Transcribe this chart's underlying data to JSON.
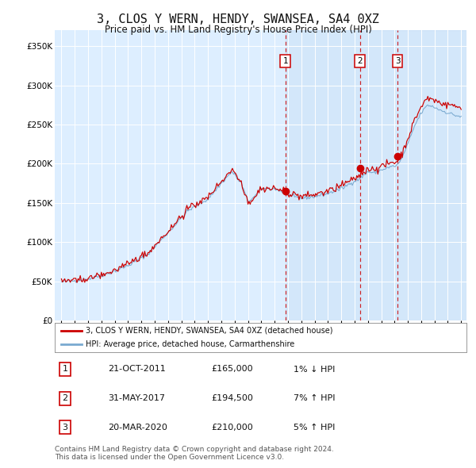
{
  "title": "3, CLOS Y WERN, HENDY, SWANSEA, SA4 0XZ",
  "subtitle": "Price paid vs. HM Land Registry's House Price Index (HPI)",
  "title_fontsize": 11,
  "subtitle_fontsize": 8.5,
  "ylim": [
    0,
    370000
  ],
  "yticks": [
    0,
    50000,
    100000,
    150000,
    200000,
    250000,
    300000,
    350000
  ],
  "ytick_labels": [
    "£0",
    "£50K",
    "£100K",
    "£150K",
    "£200K",
    "£250K",
    "£300K",
    "£350K"
  ],
  "background_color": "#ffffff",
  "plot_bg_color": "#ddeeff",
  "grid_color": "#ffffff",
  "red_line_color": "#cc0000",
  "blue_line_color": "#7aaad0",
  "shade_start_year": 2011.81,
  "xmin": 1994.5,
  "xmax": 2025.4,
  "transactions": [
    {
      "label": "1",
      "price": 165000,
      "x": 2011.81
    },
    {
      "label": "2",
      "price": 194500,
      "x": 2017.41
    },
    {
      "label": "3",
      "price": 210000,
      "x": 2020.22
    }
  ],
  "transaction_table": [
    {
      "num": "1",
      "date": "21-OCT-2011",
      "price": "£165,000",
      "change": "1% ↓ HPI"
    },
    {
      "num": "2",
      "date": "31-MAY-2017",
      "price": "£194,500",
      "change": "7% ↑ HPI"
    },
    {
      "num": "3",
      "date": "20-MAR-2020",
      "price": "£210,000",
      "change": "5% ↑ HPI"
    }
  ],
  "legend_entries": [
    "3, CLOS Y WERN, HENDY, SWANSEA, SA4 0XZ (detached house)",
    "HPI: Average price, detached house, Carmarthenshire"
  ],
  "footer": "Contains HM Land Registry data © Crown copyright and database right 2024.\nThis data is licensed under the Open Government Licence v3.0.",
  "footer_fontsize": 6.5
}
